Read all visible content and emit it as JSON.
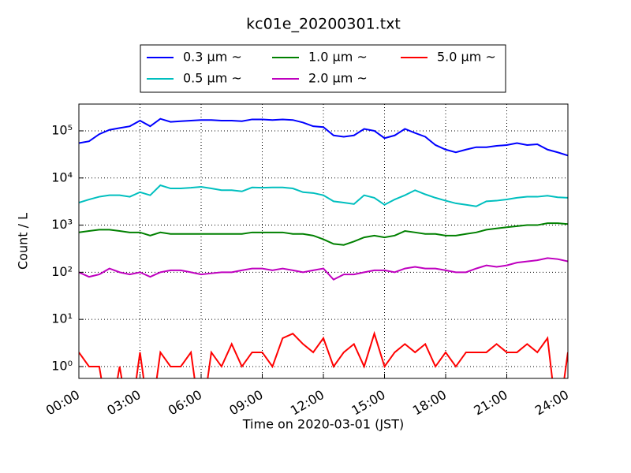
{
  "chart_data": {
    "type": "line",
    "title": "kc01e_20200301.txt",
    "x_label": "Time on 2020-03-01 (JST)",
    "y_label": "Count / L",
    "log_y": true,
    "grid": true,
    "legend": "top",
    "xlim": [
      0,
      24
    ],
    "ylim": [
      0.56,
      370000
    ],
    "xticks": [
      {
        "value": 0,
        "label": "00:00"
      },
      {
        "value": 3,
        "label": "03:00"
      },
      {
        "value": 6,
        "label": "06:00"
      },
      {
        "value": 9,
        "label": "09:00"
      },
      {
        "value": 12,
        "label": "12:00"
      },
      {
        "value": 15,
        "label": "15:00"
      },
      {
        "value": 18,
        "label": "18:00"
      },
      {
        "value": 21,
        "label": "21:00"
      },
      {
        "value": 24,
        "label": "24:00"
      }
    ],
    "yticks": [
      {
        "value": 1,
        "label": "10⁰"
      },
      {
        "value": 10,
        "label": "10¹"
      },
      {
        "value": 100,
        "label": "10²"
      },
      {
        "value": 1000,
        "label": "10³"
      },
      {
        "value": 10000,
        "label": "10⁴"
      },
      {
        "value": 100000,
        "label": "10⁵"
      }
    ],
    "x": [
      0,
      0.5,
      1,
      1.5,
      2,
      2.5,
      3,
      3.5,
      4,
      4.5,
      5,
      5.5,
      6,
      6.5,
      7,
      7.5,
      8,
      8.5,
      9,
      9.5,
      10,
      10.5,
      11,
      11.5,
      12,
      12.5,
      13,
      13.5,
      14,
      14.5,
      15,
      15.5,
      16,
      16.5,
      17,
      17.5,
      18,
      18.5,
      19,
      19.5,
      20,
      20.5,
      21,
      21.5,
      22,
      22.5,
      23,
      23.5,
      24
    ],
    "series": [
      {
        "name": "0.3 μm ~",
        "color": "#0000ff",
        "values": [
          55000,
          60000,
          85000,
          105000,
          115000,
          125000,
          165000,
          125000,
          180000,
          155000,
          160000,
          165000,
          170000,
          170000,
          165000,
          165000,
          160000,
          175000,
          175000,
          170000,
          175000,
          170000,
          150000,
          125000,
          120000,
          80000,
          75000,
          80000,
          110000,
          100000,
          70000,
          80000,
          110000,
          90000,
          75000,
          50000,
          40000,
          35000,
          40000,
          45000,
          45000,
          48000,
          50000,
          55000,
          50000,
          52000,
          40000,
          35000,
          30000
        ]
      },
      {
        "name": "0.5 μm ~",
        "color": "#00bfbf",
        "values": [
          3000,
          3500,
          4000,
          4300,
          4300,
          4000,
          5000,
          4300,
          7000,
          6000,
          6000,
          6200,
          6500,
          6000,
          5500,
          5500,
          5200,
          6300,
          6200,
          6300,
          6300,
          6000,
          5000,
          4800,
          4300,
          3200,
          3000,
          2800,
          4300,
          3800,
          2700,
          3500,
          4300,
          5500,
          4500,
          3800,
          3300,
          2900,
          2700,
          2500,
          3200,
          3300,
          3500,
          3800,
          4000,
          4000,
          4200,
          3900,
          3800
        ]
      },
      {
        "name": "1.0 μm ~",
        "color": "#008000",
        "values": [
          700,
          750,
          800,
          800,
          750,
          700,
          700,
          600,
          700,
          650,
          650,
          650,
          650,
          650,
          650,
          650,
          650,
          700,
          700,
          700,
          700,
          650,
          650,
          600,
          500,
          400,
          380,
          450,
          550,
          600,
          550,
          600,
          750,
          700,
          650,
          650,
          600,
          600,
          650,
          700,
          800,
          850,
          900,
          950,
          1000,
          1000,
          1100,
          1100,
          1050
        ]
      },
      {
        "name": "2.0 μm ~",
        "color": "#bf00bf",
        "values": [
          100,
          80,
          90,
          120,
          100,
          90,
          100,
          80,
          100,
          110,
          110,
          100,
          90,
          95,
          100,
          100,
          110,
          120,
          120,
          110,
          120,
          110,
          100,
          110,
          120,
          70,
          90,
          90,
          100,
          110,
          110,
          100,
          120,
          130,
          120,
          120,
          110,
          100,
          100,
          120,
          140,
          130,
          140,
          160,
          170,
          180,
          200,
          190,
          170
        ]
      },
      {
        "name": "5.0 μm ~",
        "color": "#ff0000",
        "values": [
          2,
          1,
          1,
          0,
          1,
          0,
          2,
          0,
          2,
          1,
          1,
          2,
          0,
          2,
          1,
          3,
          1,
          2,
          2,
          1,
          4,
          5,
          3,
          2,
          4,
          1,
          2,
          3,
          1,
          5,
          1,
          2,
          3,
          2,
          3,
          1,
          2,
          1,
          2,
          2,
          2,
          3,
          2,
          2,
          3,
          2,
          4,
          0,
          2
        ]
      }
    ]
  }
}
